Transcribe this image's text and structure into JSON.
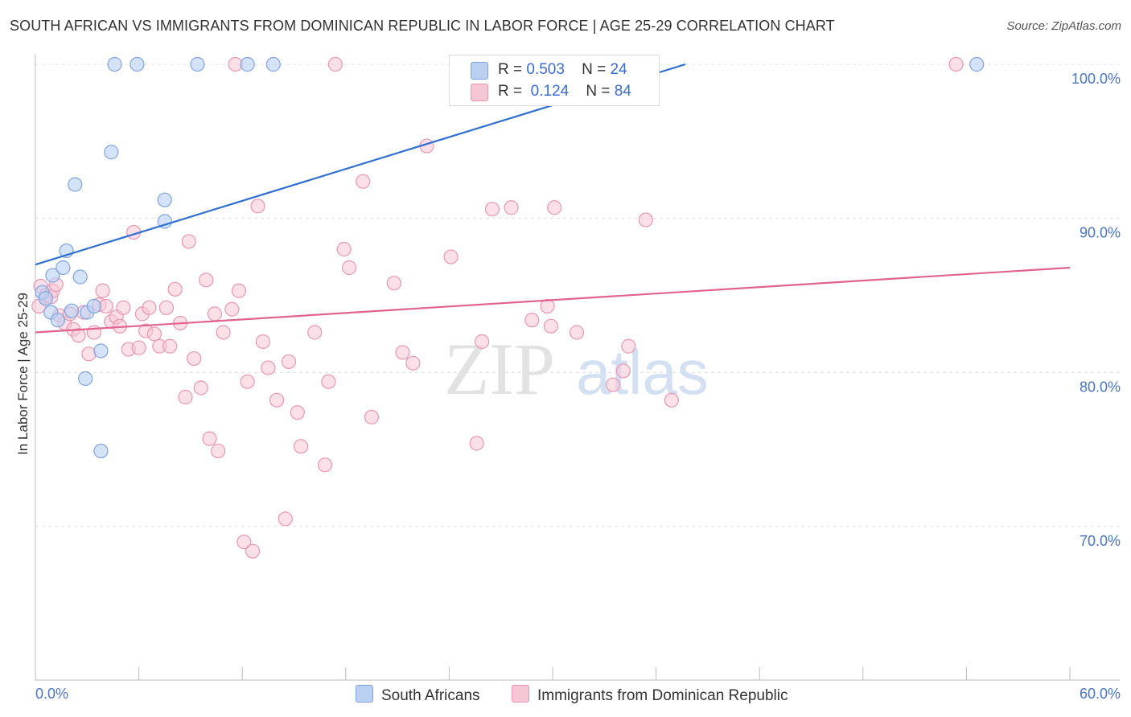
{
  "title": "SOUTH AFRICAN VS IMMIGRANTS FROM DOMINICAN REPUBLIC IN LABOR FORCE | AGE 25-29 CORRELATION CHART",
  "source": "Source: ZipAtlas.com",
  "watermark": {
    "zip": "ZIP",
    "atlas": "atlas"
  },
  "legend": {
    "series": [
      {
        "r_label": "R =",
        "r_value": "0.503",
        "n_label": "N =",
        "n_value": "24"
      },
      {
        "r_label": "R =",
        "r_value": "0.124",
        "n_label": "N =",
        "n_value": "84"
      }
    ]
  },
  "colors": {
    "blue_fill": "#b9d0f3",
    "blue_stroke": "#7fa3e0",
    "blue_line": "#2e6fd0",
    "pink_fill": "#f7c6d5",
    "pink_stroke": "#e996b2",
    "pink_line": "#e0638f",
    "grid": "#dddddd",
    "axis_text": "#4a74c8"
  },
  "chart_data": {
    "type": "scatter",
    "title": "SOUTH AFRICAN VS IMMIGRANTS FROM DOMINICAN REPUBLIC IN LABOR FORCE | AGE 25-29 CORRELATION CHART",
    "xlabel": "",
    "ylabel": "In Labor Force | Age 25-29",
    "xlim": [
      0,
      60
    ],
    "ylim": [
      60,
      102
    ],
    "x_tick_labels": [
      "0.0%",
      "60.0%"
    ],
    "y_ticks": [
      70,
      80,
      90,
      100
    ],
    "y_tick_labels": [
      "70.0%",
      "80.0%",
      "90.0%",
      "100.0%"
    ],
    "legend_entries": [
      "South Africans",
      "Immigrants from Dominican Republic"
    ],
    "series": [
      {
        "name": "South Africans",
        "r": 0.503,
        "n": 24,
        "trend": {
          "x0": 0.0,
          "y0": 87.0,
          "x1": 37.7,
          "y1": 100.0
        },
        "points": [
          [
            0.4,
            85.2
          ],
          [
            0.6,
            84.8
          ],
          [
            0.9,
            83.9
          ],
          [
            1.0,
            86.3
          ],
          [
            1.3,
            83.4
          ],
          [
            1.6,
            86.8
          ],
          [
            1.8,
            87.9
          ],
          [
            2.1,
            84.0
          ],
          [
            2.3,
            92.2
          ],
          [
            2.6,
            86.2
          ],
          [
            2.9,
            79.6
          ],
          [
            3.0,
            83.9
          ],
          [
            3.4,
            84.3
          ],
          [
            3.8,
            81.4
          ],
          [
            3.8,
            74.9
          ],
          [
            4.4,
            94.3
          ],
          [
            4.6,
            100.0
          ],
          [
            5.9,
            100.0
          ],
          [
            7.5,
            91.2
          ],
          [
            7.5,
            89.8
          ],
          [
            9.4,
            100.0
          ],
          [
            12.3,
            100.0
          ],
          [
            13.8,
            100.0
          ],
          [
            54.6,
            100.0
          ]
        ]
      },
      {
        "name": "Immigrants from Dominican Republic",
        "r": 0.124,
        "n": 84,
        "trend": {
          "x0": 0.0,
          "y0": 82.6,
          "x1": 60.0,
          "y1": 86.8
        },
        "points": [
          [
            0.2,
            84.3
          ],
          [
            0.3,
            85.6
          ],
          [
            0.6,
            85.0
          ],
          [
            0.9,
            84.9
          ],
          [
            1.0,
            85.3
          ],
          [
            1.2,
            85.7
          ],
          [
            1.4,
            83.7
          ],
          [
            1.7,
            83.2
          ],
          [
            2.0,
            83.8
          ],
          [
            2.2,
            82.8
          ],
          [
            2.5,
            82.4
          ],
          [
            2.8,
            83.9
          ],
          [
            3.1,
            81.2
          ],
          [
            3.4,
            82.6
          ],
          [
            3.7,
            84.4
          ],
          [
            3.9,
            85.3
          ],
          [
            4.1,
            84.3
          ],
          [
            4.4,
            83.3
          ],
          [
            4.7,
            83.6
          ],
          [
            4.9,
            83.0
          ],
          [
            5.1,
            84.2
          ],
          [
            5.4,
            81.5
          ],
          [
            5.7,
            89.1
          ],
          [
            6.0,
            81.6
          ],
          [
            6.2,
            83.8
          ],
          [
            6.4,
            82.7
          ],
          [
            6.6,
            84.2
          ],
          [
            6.9,
            82.5
          ],
          [
            7.2,
            81.7
          ],
          [
            7.6,
            84.2
          ],
          [
            7.8,
            81.7
          ],
          [
            8.1,
            85.4
          ],
          [
            8.4,
            83.2
          ],
          [
            8.7,
            78.4
          ],
          [
            8.9,
            88.5
          ],
          [
            9.2,
            80.9
          ],
          [
            9.6,
            79.0
          ],
          [
            9.9,
            86.0
          ],
          [
            10.1,
            75.7
          ],
          [
            10.4,
            83.8
          ],
          [
            10.6,
            74.9
          ],
          [
            10.9,
            82.6
          ],
          [
            11.4,
            84.1
          ],
          [
            11.6,
            100.0
          ],
          [
            11.8,
            85.3
          ],
          [
            12.1,
            69.0
          ],
          [
            12.3,
            79.4
          ],
          [
            12.6,
            68.4
          ],
          [
            12.9,
            90.8
          ],
          [
            13.2,
            82.0
          ],
          [
            13.5,
            80.3
          ],
          [
            14.0,
            78.2
          ],
          [
            14.5,
            70.5
          ],
          [
            14.7,
            80.7
          ],
          [
            15.2,
            77.4
          ],
          [
            15.4,
            75.2
          ],
          [
            16.2,
            82.6
          ],
          [
            16.8,
            74.0
          ],
          [
            17.0,
            79.4
          ],
          [
            17.4,
            100.0
          ],
          [
            17.9,
            88.0
          ],
          [
            18.2,
            86.8
          ],
          [
            19.0,
            92.4
          ],
          [
            19.5,
            77.1
          ],
          [
            20.8,
            85.8
          ],
          [
            21.3,
            81.3
          ],
          [
            21.9,
            80.6
          ],
          [
            22.7,
            94.7
          ],
          [
            24.1,
            87.5
          ],
          [
            25.6,
            75.4
          ],
          [
            25.9,
            82.0
          ],
          [
            26.5,
            90.6
          ],
          [
            27.6,
            90.7
          ],
          [
            28.8,
            83.4
          ],
          [
            29.7,
            84.3
          ],
          [
            29.9,
            83.0
          ],
          [
            30.1,
            90.7
          ],
          [
            31.4,
            82.6
          ],
          [
            33.5,
            79.2
          ],
          [
            34.1,
            80.1
          ],
          [
            34.4,
            81.7
          ],
          [
            35.4,
            89.9
          ],
          [
            36.9,
            78.2
          ],
          [
            53.4,
            100.0
          ]
        ]
      }
    ]
  }
}
